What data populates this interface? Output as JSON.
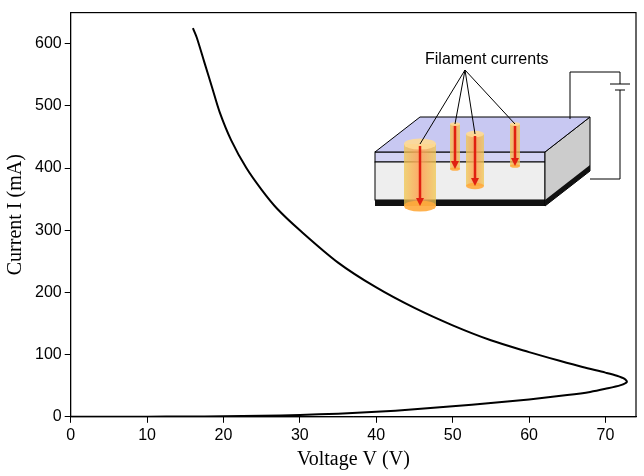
{
  "chart_data": {
    "type": "line",
    "x_label": "Voltage V (V)",
    "y_label": "Current I (mA)",
    "annotations": [
      "Filament currents"
    ],
    "x": [
      0,
      5,
      10,
      15,
      20,
      25,
      30,
      35,
      40,
      45,
      50,
      55,
      60,
      65,
      68,
      70,
      72,
      72.8,
      72.5,
      71.5,
      70,
      67,
      64,
      60,
      55,
      50,
      45,
      40,
      35,
      30,
      27,
      25,
      23,
      21,
      19.5,
      18.5,
      17.5,
      16.5,
      16
    ],
    "values": [
      0,
      0.1,
      0.2,
      0.4,
      0.8,
      1.5,
      3,
      5,
      8,
      12,
      17,
      22,
      28,
      35,
      40,
      45,
      51,
      56,
      61,
      66,
      71,
      80,
      90,
      104,
      123,
      147,
      175,
      208,
      248,
      300,
      335,
      365,
      400,
      445,
      490,
      530,
      570,
      610,
      625
    ],
    "color": "#000000",
    "xlim": [
      0,
      74
    ],
    "ylim": [
      0,
      650
    ],
    "xticks": [
      0,
      10,
      20,
      30,
      40,
      50,
      60,
      70
    ],
    "yticks": [
      0,
      100,
      200,
      300,
      400,
      500,
      600
    ],
    "grid": false
  }
}
